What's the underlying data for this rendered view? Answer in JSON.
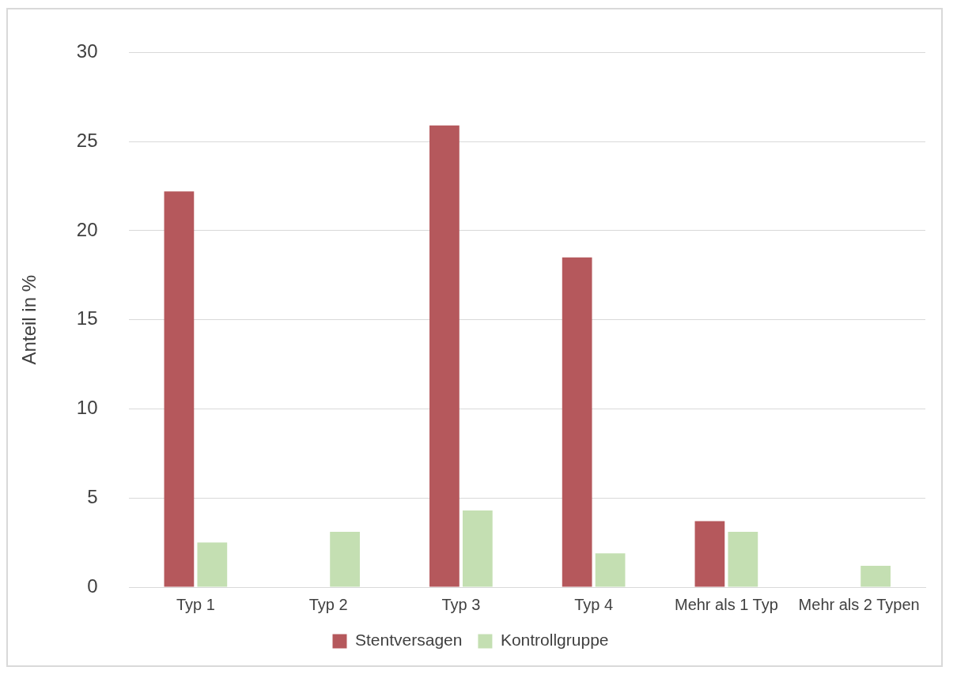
{
  "chart_data": {
    "type": "bar",
    "ylabel": "Anteil in %",
    "categories": [
      "Typ 1",
      "Typ 2",
      "Typ 3",
      "Typ 4",
      "Mehr als 1 Typ",
      "Mehr als 2 Typen"
    ],
    "series": [
      {
        "name": "Stentversagen",
        "color": "#b5585c",
        "values": [
          22.2,
          0,
          25.9,
          18.5,
          3.7,
          0
        ]
      },
      {
        "name": "Kontrollgruppe",
        "color": "#c4dfb2",
        "values": [
          2.5,
          3.1,
          4.3,
          1.9,
          3.1,
          1.2
        ]
      }
    ],
    "ylim": [
      0,
      30
    ],
    "yticks": [
      0,
      5,
      10,
      15,
      20,
      25,
      30
    ],
    "grid": "y",
    "legend": "bottom"
  }
}
